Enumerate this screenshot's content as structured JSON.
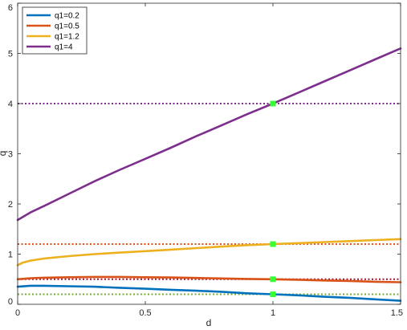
{
  "chart_data": {
    "type": "line",
    "xlabel": "d",
    "ylabel": "q",
    "xlim": [
      0,
      1.5
    ],
    "ylim": [
      0,
      6
    ],
    "x_ticks": [
      0,
      0.5,
      1,
      1.5
    ],
    "x_tick_labels": [
      "0",
      "0.5",
      "1",
      "1.5"
    ],
    "y_ticks": [
      0,
      1,
      2,
      3,
      4,
      5,
      6
    ],
    "y_tick_labels": [
      "0",
      "1",
      "2",
      "3",
      "4",
      "5",
      "6"
    ],
    "grid": false,
    "legend_position": "top-left",
    "series": [
      {
        "name": "q1=0.2",
        "color": "#0072bd",
        "x": [
          0,
          0.05,
          0.1,
          0.2,
          0.3,
          0.4,
          0.5,
          0.6,
          0.7,
          0.8,
          0.9,
          1.0,
          1.1,
          1.2,
          1.3,
          1.4,
          1.5
        ],
        "y": [
          0.35,
          0.37,
          0.37,
          0.36,
          0.35,
          0.33,
          0.31,
          0.29,
          0.27,
          0.25,
          0.22,
          0.2,
          0.18,
          0.15,
          0.13,
          0.1,
          0.07
        ]
      },
      {
        "name": "q1=0.5",
        "color": "#d95319",
        "x": [
          0,
          0.05,
          0.1,
          0.2,
          0.3,
          0.4,
          0.5,
          0.6,
          0.7,
          0.8,
          0.9,
          1.0,
          1.1,
          1.2,
          1.3,
          1.4,
          1.5
        ],
        "y": [
          0.5,
          0.52,
          0.53,
          0.54,
          0.545,
          0.545,
          0.54,
          0.535,
          0.525,
          0.515,
          0.505,
          0.5,
          0.49,
          0.475,
          0.465,
          0.45,
          0.44
        ]
      },
      {
        "name": "q1=1.2",
        "color": "#edb120",
        "x": [
          0,
          0.02,
          0.05,
          0.1,
          0.2,
          0.3,
          0.4,
          0.5,
          0.6,
          0.7,
          0.8,
          0.9,
          1.0,
          1.1,
          1.2,
          1.3,
          1.4,
          1.5
        ],
        "y": [
          0.78,
          0.83,
          0.87,
          0.91,
          0.96,
          1.0,
          1.03,
          1.06,
          1.09,
          1.12,
          1.15,
          1.18,
          1.2,
          1.22,
          1.24,
          1.26,
          1.28,
          1.3
        ]
      },
      {
        "name": "q1=4",
        "color": "#7e2f8e",
        "x": [
          0,
          0.05,
          0.1,
          0.2,
          0.3,
          0.4,
          0.5,
          0.6,
          0.7,
          0.8,
          0.9,
          1.0,
          1.1,
          1.2,
          1.3,
          1.4,
          1.5
        ],
        "y": [
          1.68,
          1.83,
          1.95,
          2.2,
          2.45,
          2.68,
          2.9,
          3.12,
          3.35,
          3.57,
          3.79,
          4.0,
          4.22,
          4.44,
          4.66,
          4.88,
          5.1
        ]
      }
    ],
    "reference_lines": [
      {
        "y": 0.2,
        "color": "#77ac30",
        "style": "dotted"
      },
      {
        "y": 0.5,
        "color": "#a2142f",
        "style": "dotted"
      },
      {
        "y": 1.2,
        "color": "#d95319",
        "style": "dotted"
      },
      {
        "y": 4.0,
        "color": "#7e2f8e",
        "style": "dotted"
      }
    ],
    "markers": {
      "color": "#33ff33",
      "points": [
        {
          "x": 1,
          "y": 0.2
        },
        {
          "x": 1,
          "y": 0.5
        },
        {
          "x": 1,
          "y": 1.2
        },
        {
          "x": 1,
          "y": 4.0
        }
      ]
    }
  }
}
